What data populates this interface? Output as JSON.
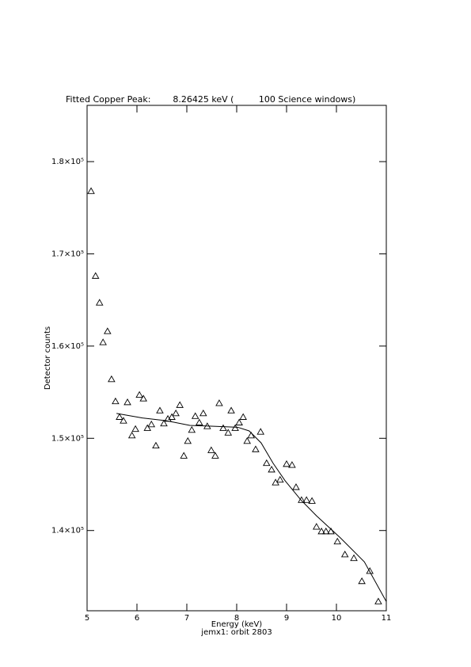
{
  "chart_data": {
    "type": "scatter",
    "title": "Fitted Copper Peak:        8.26425 keV (         100 Science windows)",
    "x_label": "Energy (keV)",
    "subtitle": "jemx1: orbit 2803",
    "y_label": "Detector counts",
    "xlim": [
      5,
      11
    ],
    "xticks": [
      5,
      6,
      7,
      8,
      9,
      10,
      11
    ],
    "ylim": [
      131300,
      186100
    ],
    "yticks": [
      {
        "value": 140000,
        "label": "1.4×10⁵"
      },
      {
        "value": 150000,
        "label": "1.5×10⁵"
      },
      {
        "value": 160000,
        "label": "1.6×10⁵"
      },
      {
        "value": 170000,
        "label": "1.7×10⁵"
      },
      {
        "value": 180000,
        "label": "1.8×10⁵"
      }
    ],
    "series": [
      {
        "style": "triangle",
        "color": "#000000",
        "x": [
          5.08,
          5.17,
          5.25,
          5.32,
          5.41,
          5.49,
          5.57,
          5.65,
          5.73,
          5.81,
          5.9,
          5.97,
          6.05,
          6.13,
          6.21,
          6.29,
          6.38,
          6.46,
          6.54,
          6.62,
          6.7,
          6.78,
          6.86,
          6.94,
          7.02,
          7.1,
          7.17,
          7.25,
          7.33,
          7.41,
          7.49,
          7.57,
          7.65,
          7.73,
          7.83,
          7.89,
          7.97,
          8.05,
          8.13,
          8.21,
          8.29,
          8.38,
          8.48,
          8.6,
          8.7,
          8.78,
          8.87,
          9.0,
          9.11,
          9.19,
          9.3,
          9.4,
          9.51,
          9.6,
          9.7,
          9.79,
          9.89,
          10.02,
          10.17,
          10.35,
          10.51,
          10.67,
          10.84
        ],
        "values": [
          176800,
          167600,
          164700,
          160400,
          161600,
          156400,
          154000,
          152300,
          151900,
          153900,
          150300,
          151000,
          154700,
          154300,
          151100,
          151500,
          149200,
          153000,
          151600,
          152100,
          152300,
          152700,
          153600,
          148100,
          149700,
          150900,
          152400,
          151700,
          152700,
          151300,
          148700,
          148100,
          153800,
          151100,
          150600,
          153000,
          151100,
          151700,
          152300,
          149700,
          150300,
          148800,
          150700,
          147300,
          146600,
          145200,
          145500,
          147200,
          147100,
          144700,
          143300,
          143300,
          143200,
          140400,
          139900,
          139900,
          139900,
          138800,
          137400,
          137000,
          134500,
          135600,
          132300
        ]
      },
      {
        "style": "line",
        "color": "#000000",
        "x": [
          5.59,
          6.11,
          6.59,
          7.06,
          7.54,
          8.02,
          8.25,
          8.49,
          8.73,
          8.97,
          9.29,
          9.6,
          10.08,
          10.56,
          11.0
        ],
        "values": [
          152700,
          152200,
          151900,
          151400,
          151300,
          151200,
          150800,
          149500,
          147300,
          145400,
          143300,
          141600,
          139200,
          136600,
          132300
        ]
      }
    ]
  }
}
